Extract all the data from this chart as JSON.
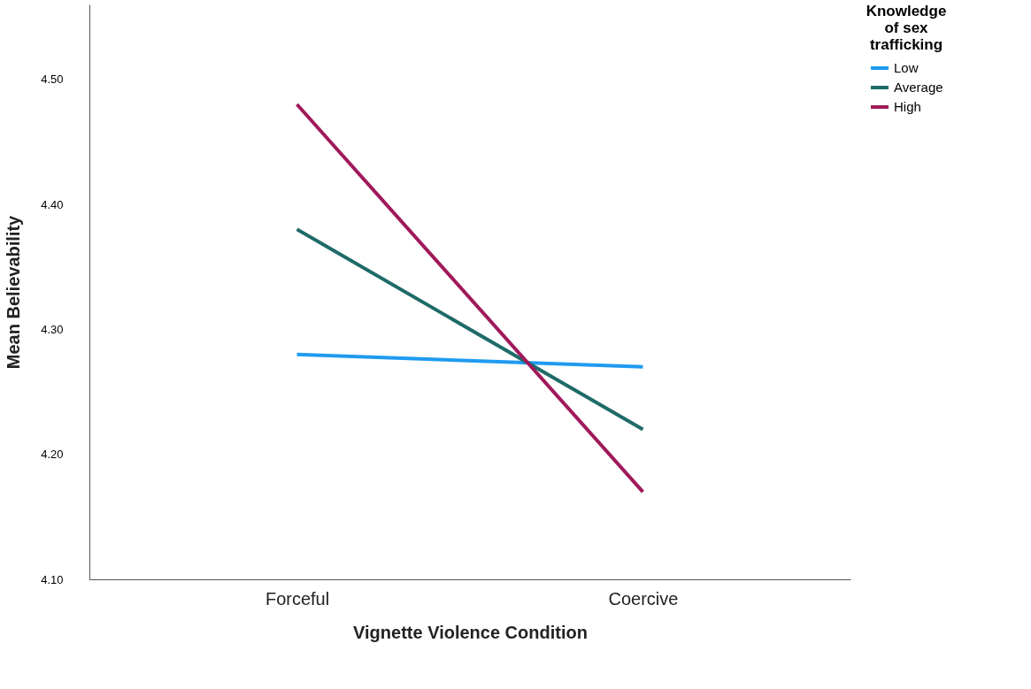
{
  "chart_data": {
    "type": "line",
    "xlabel": "Vignette Violence Condition",
    "ylabel": "Mean Believability",
    "legend_title": "Knowledge of sex trafficking",
    "categories": [
      "Forceful",
      "Coercive"
    ],
    "series": [
      {
        "name": "Low",
        "color": "#1f9bf0",
        "values": [
          4.28,
          4.27
        ]
      },
      {
        "name": "Average",
        "color": "#1e6b68",
        "values": [
          4.38,
          4.22
        ]
      },
      {
        "name": "High",
        "color": "#a0195a",
        "values": [
          4.48,
          4.17
        ]
      }
    ],
    "ylim": [
      4.1,
      4.56
    ],
    "yticks": [
      {
        "value": 4.1,
        "label": "4.10"
      },
      {
        "value": 4.2,
        "label": "4.20"
      },
      {
        "value": 4.3,
        "label": "4.30"
      },
      {
        "value": 4.4,
        "label": "4.40"
      },
      {
        "value": 4.5,
        "label": "4.50"
      }
    ],
    "grid": false,
    "legend": "top right",
    "marker": "none",
    "line_style": "solid"
  }
}
